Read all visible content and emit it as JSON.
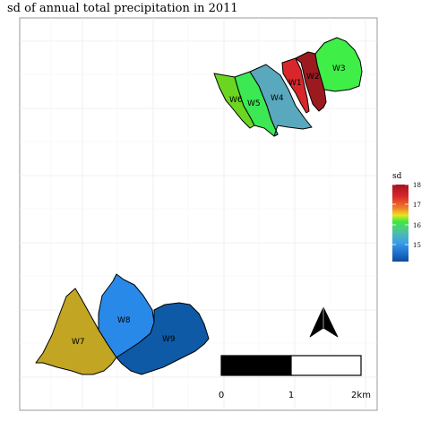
{
  "title": "sd of annual total precipitation in 2011",
  "legend": {
    "title": "sd",
    "ticks": [
      "18",
      "17",
      "16",
      "15"
    ],
    "gradient_colors": [
      "#b2182b",
      "#d7301f",
      "#f46d43",
      "#fdae61",
      "#4de63b",
      "#31d23a",
      "#4fb8c8",
      "#3aa0e8",
      "#1565c0",
      "#0d47a1"
    ]
  },
  "watersheds": [
    {
      "id": "W1",
      "label": "W1",
      "color": "#d9262b"
    },
    {
      "id": "W2",
      "label": "W2",
      "color": "#9c1a1f"
    },
    {
      "id": "W3",
      "label": "W3",
      "color": "#3fee46"
    },
    {
      "id": "W4",
      "label": "W4",
      "color": "#5aa8be"
    },
    {
      "id": "W5",
      "label": "W5",
      "color": "#3ce854"
    },
    {
      "id": "W6",
      "label": "W6",
      "color": "#6ad621"
    },
    {
      "id": "W7",
      "label": "W7",
      "color": "#c2a623"
    },
    {
      "id": "W8",
      "label": "W8",
      "color": "#2889e8"
    },
    {
      "id": "W9",
      "label": "W9",
      "color": "#0f5aa6"
    }
  ],
  "scale_bar": {
    "labels": [
      "0",
      "1",
      "2km"
    ]
  },
  "north_arrow": "north-arrow"
}
